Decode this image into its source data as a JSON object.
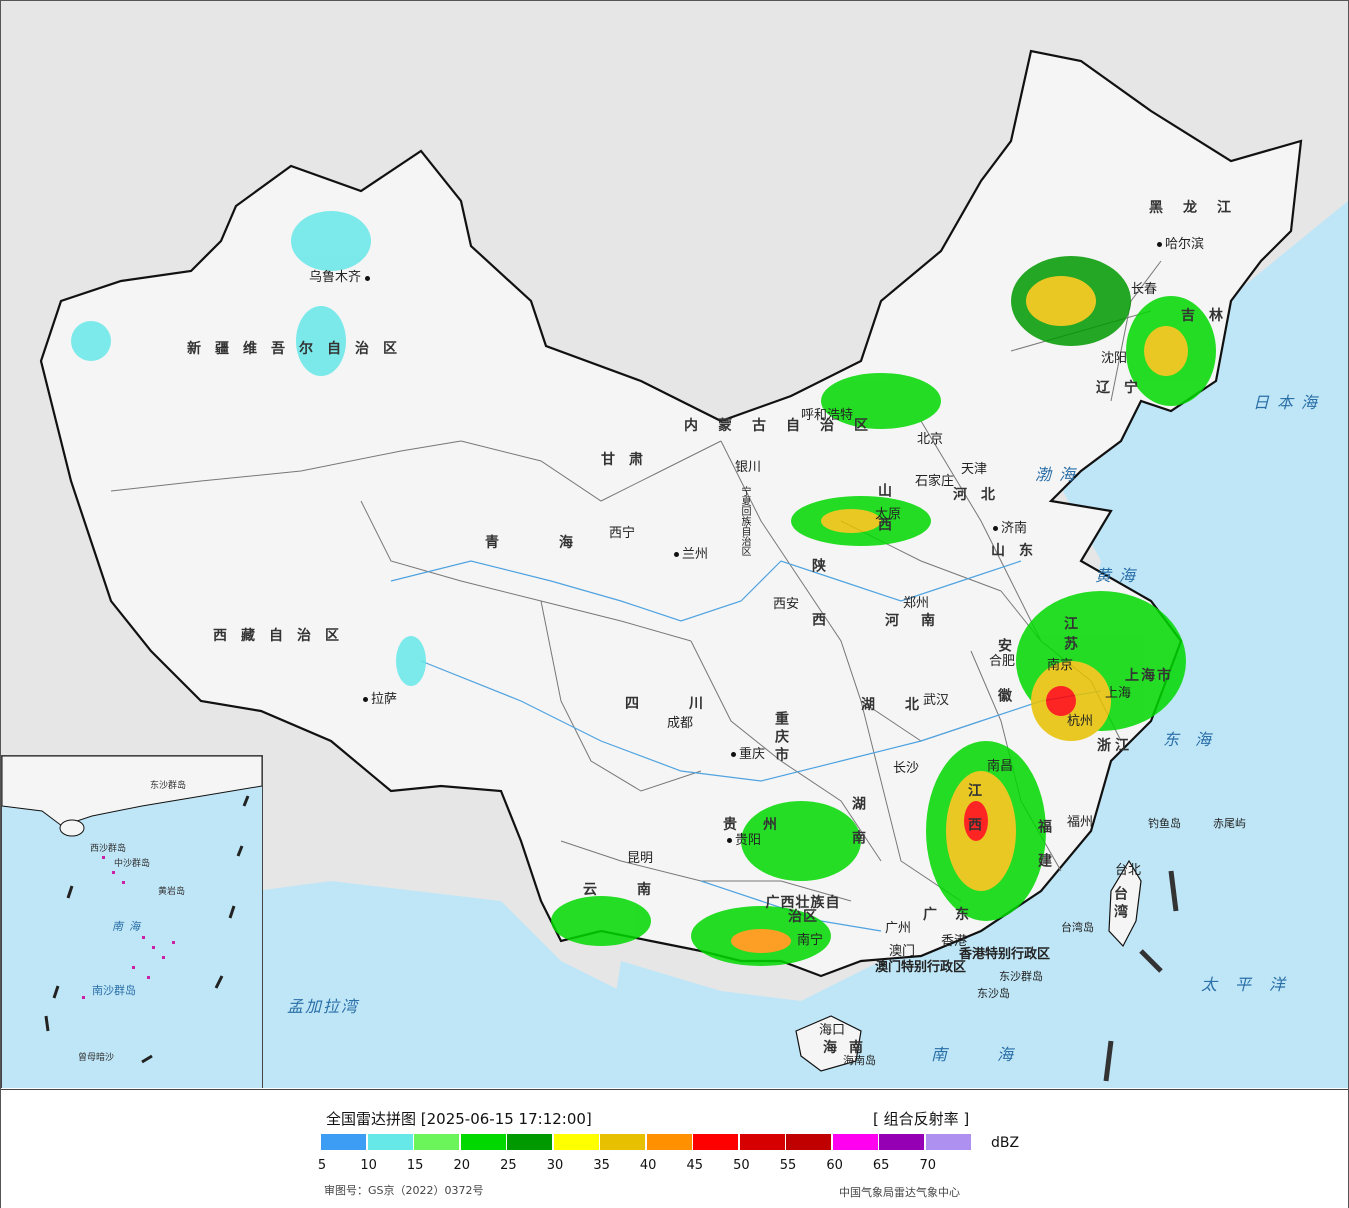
{
  "map": {
    "provinces": [
      {
        "id": "xinjiang",
        "label": "新疆维吾尔自治区"
      },
      {
        "id": "xizang",
        "label": "西藏自治区"
      },
      {
        "id": "qinghai",
        "label": "青海"
      },
      {
        "id": "gansu",
        "label": "甘肃"
      },
      {
        "id": "neimenggu",
        "label": "内蒙古自治区"
      },
      {
        "id": "heilongjiang",
        "label": "黑龙江"
      },
      {
        "id": "jilin",
        "label": "吉林"
      },
      {
        "id": "liaoning",
        "label": "辽宁"
      },
      {
        "id": "hebei",
        "label": "河北"
      },
      {
        "id": "shanxi",
        "label": "山西"
      },
      {
        "id": "shandong",
        "label": "山东"
      },
      {
        "id": "henan",
        "label": "河南"
      },
      {
        "id": "shaanxi",
        "label": "陕西"
      },
      {
        "id": "sichuan",
        "label": "四川"
      },
      {
        "id": "chongqing",
        "label": "重庆市"
      },
      {
        "id": "hubei",
        "label": "湖北"
      },
      {
        "id": "hunan",
        "label": "湖南"
      },
      {
        "id": "jiangxi",
        "label": "江西"
      },
      {
        "id": "anhui",
        "label": "安徽"
      },
      {
        "id": "jiangsu",
        "label": "江苏"
      },
      {
        "id": "zhejiang",
        "label": "浙江"
      },
      {
        "id": "fujian",
        "label": "福建"
      },
      {
        "id": "guangdong",
        "label": "广东"
      },
      {
        "id": "guangxi",
        "label": "广西壮族自治区"
      },
      {
        "id": "guizhou",
        "label": "贵州"
      },
      {
        "id": "yunnan",
        "label": "云南"
      },
      {
        "id": "hainan",
        "label": "海南"
      },
      {
        "id": "taiwan",
        "label": "台湾"
      },
      {
        "id": "ningxia",
        "label": "宁夏回族自治区"
      },
      {
        "id": "shanghai",
        "label": "上海市"
      },
      {
        "id": "hk",
        "label": "香港特别行政区"
      },
      {
        "id": "macau",
        "label": "澳门特别行政区"
      }
    ],
    "cities": [
      {
        "id": "urumqi",
        "label": "乌鲁木齐"
      },
      {
        "id": "lhasa",
        "label": "拉萨"
      },
      {
        "id": "xining",
        "label": "西宁"
      },
      {
        "id": "lanzhou",
        "label": "兰州"
      },
      {
        "id": "yinchuan",
        "label": "银川"
      },
      {
        "id": "hohhot",
        "label": "呼和浩特"
      },
      {
        "id": "beijing",
        "label": "北京"
      },
      {
        "id": "tianjin",
        "label": "天津"
      },
      {
        "id": "shijiazhuang",
        "label": "石家庄"
      },
      {
        "id": "taiyuan",
        "label": "太原"
      },
      {
        "id": "jinan",
        "label": "济南"
      },
      {
        "id": "zhengzhou",
        "label": "郑州"
      },
      {
        "id": "xian",
        "label": "西安"
      },
      {
        "id": "chengdu",
        "label": "成都"
      },
      {
        "id": "chongqing",
        "label": "重庆"
      },
      {
        "id": "wuhan",
        "label": "武汉"
      },
      {
        "id": "hefei",
        "label": "合肥"
      },
      {
        "id": "nanjing",
        "label": "南京"
      },
      {
        "id": "shanghai",
        "label": "上海"
      },
      {
        "id": "hangzhou",
        "label": "杭州"
      },
      {
        "id": "nanchang",
        "label": "南昌"
      },
      {
        "id": "changsha",
        "label": "长沙"
      },
      {
        "id": "fuzhou",
        "label": "福州"
      },
      {
        "id": "guiyang",
        "label": "贵阳"
      },
      {
        "id": "kunming",
        "label": "昆明"
      },
      {
        "id": "nanning",
        "label": "南宁"
      },
      {
        "id": "guangzhou",
        "label": "广州"
      },
      {
        "id": "hongkong",
        "label": "香港"
      },
      {
        "id": "macau",
        "label": "澳门"
      },
      {
        "id": "haikou",
        "label": "海口"
      },
      {
        "id": "taipei",
        "label": "台北"
      },
      {
        "id": "harbin",
        "label": "哈尔滨"
      },
      {
        "id": "changchun",
        "label": "长春"
      },
      {
        "id": "shenyang",
        "label": "沈阳"
      }
    ],
    "seas": [
      {
        "id": "bohai",
        "label": "渤海"
      },
      {
        "id": "yellow",
        "label": "黄海"
      },
      {
        "id": "east",
        "label": "东海"
      },
      {
        "id": "japan",
        "label": "日本海"
      },
      {
        "id": "pacific",
        "label": "太平洋"
      },
      {
        "id": "south",
        "label": "南海"
      },
      {
        "id": "bengal",
        "label": "孟加拉湾"
      }
    ],
    "islands": [
      {
        "id": "diaoyu",
        "label": "钓鱼岛"
      },
      {
        "id": "chiwei",
        "label": "赤尾屿"
      },
      {
        "id": "taiwan_isl",
        "label": "台湾岛"
      },
      {
        "id": "dongsha_qd",
        "label": "东沙群岛"
      },
      {
        "id": "dongsha_d",
        "label": "东沙岛"
      },
      {
        "id": "hainan_isl",
        "label": "海南岛"
      }
    ],
    "inset_labels": [
      {
        "id": "dongsha",
        "label": "东沙群岛"
      },
      {
        "id": "xisha",
        "label": "西沙群岛"
      },
      {
        "id": "zhongsha",
        "label": "中沙群岛"
      },
      {
        "id": "huangyan",
        "label": "黄岩岛"
      },
      {
        "id": "nansha",
        "label": "南沙群岛"
      },
      {
        "id": "nanhai",
        "label": "南海"
      },
      {
        "id": "zengmu",
        "label": "曾母暗沙"
      }
    ],
    "colors": {
      "sea": "#bfe6f7",
      "land": "#f5f5f5",
      "outside": "#e6e6e6",
      "border": "#111111"
    }
  },
  "legend": {
    "title": "全国雷达拼图 [2025-06-15 17:12:00]",
    "product": "[ 组合反射率 ]",
    "unit": "dBZ",
    "ticks": [
      "5",
      "10",
      "15",
      "20",
      "25",
      "30",
      "35",
      "40",
      "45",
      "50",
      "55",
      "60",
      "65",
      "70"
    ],
    "colors": [
      "#3d9df5",
      "#66e8e8",
      "#6bf55a",
      "#00d800",
      "#009a00",
      "#ffff00",
      "#e7c100",
      "#ff9100",
      "#ff0000",
      "#d60000",
      "#c00000",
      "#ff00f0",
      "#9600b4",
      "#ae90f0"
    ],
    "approval": "审图号：GS京（2022）0372号",
    "source": "中国气象局雷达气象中心"
  }
}
